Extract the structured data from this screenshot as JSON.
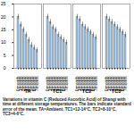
{
  "chart_data": {
    "type": "bar",
    "caption": "Variations in vitamin C (Reduced Ascorbic Acid) of Shangi with time at different storage temperatures. The bars indicate standard error of the mean. TA=Ambient, TC1=12-14°C, TC2=8-10°C, TC3=4-6°C.",
    "categories": [
      "0month",
      "1month",
      "2month",
      "3month",
      "4month",
      "5month",
      "6month",
      "7month"
    ],
    "series": [
      {
        "name": "TA",
        "color": "#9dc3e6",
        "values": [
          20,
          17,
          15,
          13,
          11,
          9,
          8,
          7
        ],
        "errors": [
          1,
          1,
          1,
          1,
          1,
          1,
          1,
          1
        ]
      },
      {
        "name": "TC1",
        "color": "#9dc3e6",
        "values": [
          20,
          18,
          16,
          15,
          13,
          12,
          11,
          10
        ],
        "errors": [
          1,
          1,
          1,
          1,
          1,
          1,
          1,
          1
        ]
      },
      {
        "name": "TC2",
        "color": "#9dc3e6",
        "values": [
          20,
          19,
          17,
          16,
          15,
          14,
          13,
          12
        ],
        "errors": [
          1,
          1,
          1,
          1,
          1,
          1,
          1,
          1
        ]
      },
      {
        "name": "TC3",
        "color": "#9dc3e6",
        "values": [
          20,
          19,
          18,
          17,
          16,
          15,
          14,
          13
        ],
        "errors": [
          1,
          1,
          1,
          1,
          1,
          1,
          1,
          1
        ]
      }
    ],
    "ylim": [
      0,
      25
    ],
    "yticks": [
      0,
      5,
      10,
      15,
      20,
      25
    ],
    "grid": false
  }
}
